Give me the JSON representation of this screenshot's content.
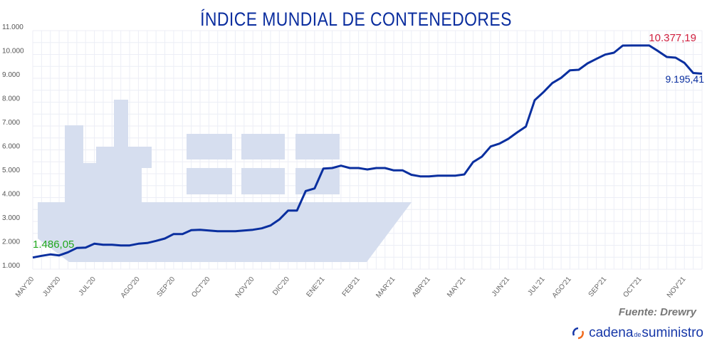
{
  "chart_data": {
    "type": "line",
    "title": "ÍNDICE MUNDIAL DE CONTENEDORES",
    "xlabel": "",
    "ylabel": "",
    "ylim": [
      1000,
      11000
    ],
    "yticks": [
      "1.000",
      "2.000",
      "3.000",
      "4.000",
      "5.000",
      "6.000",
      "7.000",
      "8.000",
      "9.000",
      "10.000",
      "11.000"
    ],
    "ytick_values": [
      1000,
      2000,
      3000,
      4000,
      5000,
      6000,
      7000,
      8000,
      9000,
      10000,
      11000
    ],
    "xticks": [
      {
        "label": "MAY'20",
        "index": 0
      },
      {
        "label": "JUN'20",
        "index": 3
      },
      {
        "label": "JUL'20",
        "index": 7
      },
      {
        "label": "AGO'20",
        "index": 12
      },
      {
        "label": "SEP'20",
        "index": 16
      },
      {
        "label": "OCT'20",
        "index": 20
      },
      {
        "label": "NOV'20",
        "index": 25
      },
      {
        "label": "DIC'20",
        "index": 29
      },
      {
        "label": "ENE'21",
        "index": 33
      },
      {
        "label": "FEB'21",
        "index": 37
      },
      {
        "label": "MAR'21",
        "index": 41
      },
      {
        "label": "ABR'21",
        "index": 45
      },
      {
        "label": "MAY'21",
        "index": 49
      },
      {
        "label": "JUN'21",
        "index": 54
      },
      {
        "label": "JUL'21",
        "index": 58
      },
      {
        "label": "AGO'21",
        "index": 61
      },
      {
        "label": "SEP'21",
        "index": 65
      },
      {
        "label": "OCT'21",
        "index": 69
      },
      {
        "label": "NOV'21",
        "index": 74
      }
    ],
    "grid": true,
    "series": [
      {
        "color": "#0a2f9f",
        "values": [
          1486,
          1557,
          1617,
          1577,
          1707,
          1886,
          1905,
          2065,
          2024,
          2024,
          1994,
          1994,
          2065,
          2095,
          2184,
          2284,
          2473,
          2473,
          2632,
          2651,
          2622,
          2592,
          2592,
          2592,
          2622,
          2651,
          2711,
          2830,
          3080,
          3457,
          3457,
          4274,
          4383,
          5219,
          5239,
          5338,
          5239,
          5239,
          5179,
          5239,
          5239,
          5140,
          5140,
          4955,
          4890,
          4890,
          4920,
          4920,
          4920,
          4970,
          5488,
          5716,
          6144,
          6264,
          6463,
          6731,
          6980,
          8085,
          8423,
          8800,
          9020,
          9338,
          9358,
          9627,
          9816,
          9995,
          10075,
          10373,
          10377,
          10377,
          10377,
          10144,
          9896,
          9866,
          9647,
          9225,
          9195
        ]
      }
    ],
    "annotations": [
      {
        "text": "1.486,05",
        "color": "#22a81e"
      },
      {
        "text": "10.377,19",
        "color": "#d0203f"
      },
      {
        "text": "9.195,41",
        "color": "#0a2f9f"
      }
    ]
  },
  "source": "Fuente: Drewry",
  "logo": {
    "part1": "cadena",
    "part2": "de",
    "part3": "suministro"
  },
  "colors": {
    "ship": "#d6deef",
    "grid": "#eceef6"
  }
}
